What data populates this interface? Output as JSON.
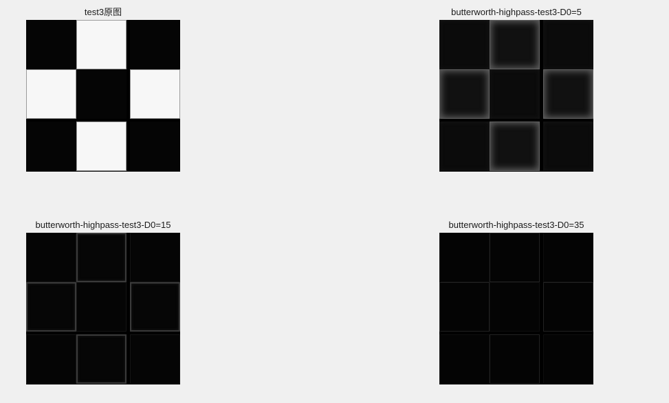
{
  "figure": {
    "panels": [
      {
        "title": "test3原图"
      },
      {
        "title": "butterworth-highpass-test3-D0=5"
      },
      {
        "title": "butterworth-highpass-test3-D0=15"
      },
      {
        "title": "butterworth-highpass-test3-D0=35"
      }
    ]
  },
  "pattern": [
    "black",
    "white",
    "black",
    "white",
    "black",
    "white",
    "black",
    "white",
    "black"
  ]
}
